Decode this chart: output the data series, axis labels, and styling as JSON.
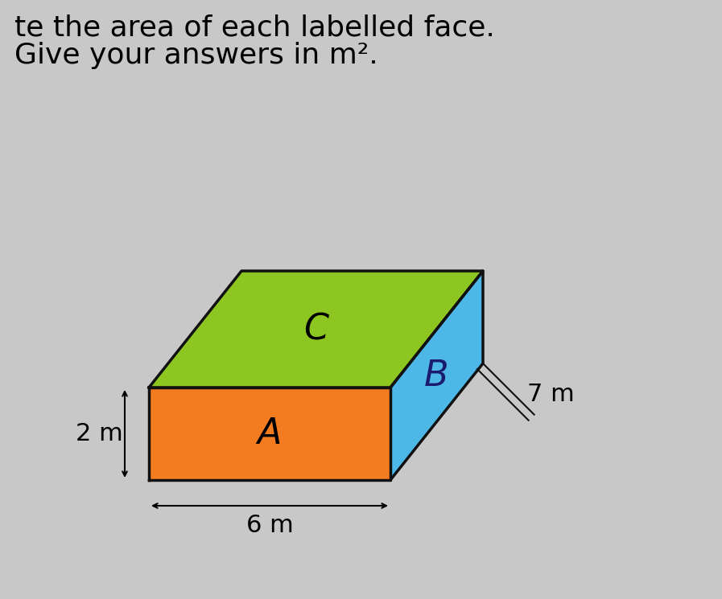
{
  "title_line1": "te the area of each labelled face.",
  "title_line2": "Give your answers in m².",
  "bg_color": "#c8c8c8",
  "face_A_color": "#f47c20",
  "face_B_color": "#4db8e8",
  "face_C_color": "#8dc620",
  "face_A_label": "A",
  "face_B_label": "B",
  "face_C_label": "C",
  "dim_width_label": "6 m",
  "dim_height_label": "2 m",
  "dim_depth_label": "7 m",
  "outline_color": "#111111",
  "label_fontsize": 32,
  "dim_fontsize": 22,
  "title_fontsize": 26,
  "title2_fontsize": 26
}
